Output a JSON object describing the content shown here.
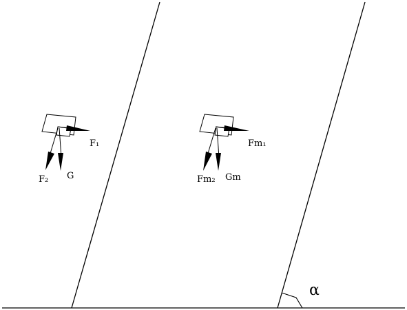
{
  "diagram": {
    "left_block": {
      "labels": {
        "f1": "F₁",
        "f2": "F₂",
        "g": "G"
      }
    },
    "right_block": {
      "labels": {
        "fm1": "Fm₁",
        "fm2": "Fm₂",
        "gm": "Gm"
      }
    },
    "angle_label": "α"
  }
}
